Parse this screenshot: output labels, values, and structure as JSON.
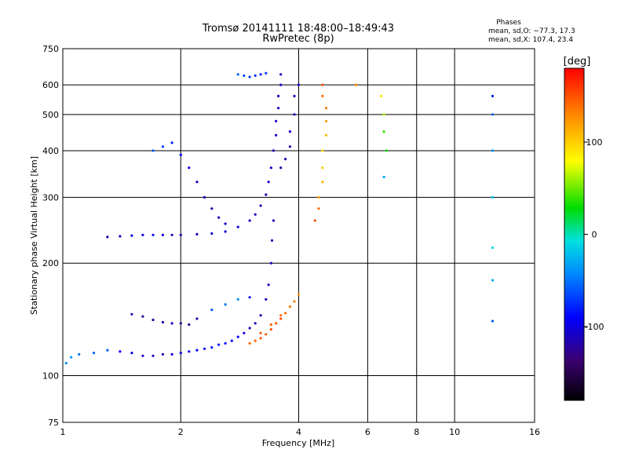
{
  "chart_data": {
    "type": "scatter",
    "title": "Tromsø 20141111 18:48:00–18:49:43",
    "subtitle": "RwPretec (8p)",
    "xlabel": "Frequency [MHz]",
    "ylabel": "Stationary phase Virtual Height [km]",
    "x_scale": "log",
    "y_scale": "log",
    "xlim": [
      1,
      16
    ],
    "ylim": [
      75,
      750
    ],
    "xticks": [
      1,
      2,
      4,
      6,
      8,
      10,
      16
    ],
    "yticks": [
      75,
      100,
      200,
      300,
      400,
      500,
      600,
      750
    ],
    "grid": true,
    "colorbar": {
      "label": "[deg]",
      "ticks": [
        100,
        0,
        -100
      ],
      "range": [
        -180,
        180
      ]
    },
    "stats": {
      "heading": "Phases",
      "line1": "mean, sd,O: −77.3, 17.3",
      "line2": "mean, sd,X: 107.4, 23.4"
    },
    "series": [
      {
        "points": [
          [
            1.02,
            108,
            -40
          ],
          [
            1.05,
            112,
            -35
          ],
          [
            1.1,
            114,
            -50
          ],
          [
            1.2,
            115,
            -55
          ],
          [
            1.3,
            117,
            -60
          ],
          [
            1.4,
            116,
            -90
          ],
          [
            1.5,
            115,
            -100
          ],
          [
            1.6,
            113,
            -105
          ],
          [
            1.7,
            113,
            -110
          ],
          [
            1.8,
            114,
            -115
          ],
          [
            1.9,
            114,
            -105
          ],
          [
            2.0,
            115,
            -100
          ],
          [
            2.1,
            116,
            -95
          ],
          [
            2.2,
            117,
            -90
          ],
          [
            2.3,
            118,
            -85
          ],
          [
            2.4,
            119,
            -80
          ],
          [
            2.5,
            121,
            -80
          ],
          [
            2.6,
            122,
            -85
          ],
          [
            2.7,
            124,
            -90
          ],
          [
            2.8,
            127,
            -100
          ],
          [
            2.9,
            130,
            -105
          ],
          [
            3.0,
            134,
            -110
          ],
          [
            3.1,
            138,
            -110
          ],
          [
            3.2,
            145,
            -115
          ],
          [
            3.3,
            160,
            -110
          ],
          [
            3.35,
            175,
            -105
          ],
          [
            3.4,
            200,
            -110
          ],
          [
            3.42,
            230,
            -115
          ],
          [
            3.45,
            260,
            -110
          ]
        ]
      },
      {
        "points": [
          [
            1.5,
            146,
            -120
          ],
          [
            1.6,
            144,
            -125
          ],
          [
            1.7,
            141,
            -120
          ],
          [
            1.8,
            139,
            -115
          ],
          [
            1.9,
            138,
            -110
          ],
          [
            2.0,
            138,
            -120
          ],
          [
            2.1,
            137,
            -125
          ],
          [
            2.2,
            142,
            -120
          ],
          [
            2.4,
            150,
            -60
          ],
          [
            2.6,
            155,
            -50
          ],
          [
            2.8,
            160,
            -40
          ],
          [
            3.0,
            162,
            -90
          ]
        ]
      },
      {
        "points": [
          [
            3.0,
            122,
            140
          ],
          [
            3.1,
            124,
            145
          ],
          [
            3.2,
            126,
            150
          ],
          [
            3.3,
            129,
            145
          ],
          [
            3.4,
            133,
            150
          ],
          [
            3.5,
            138,
            145
          ],
          [
            3.6,
            142,
            150
          ],
          [
            3.7,
            147,
            140
          ],
          [
            3.8,
            153,
            135
          ],
          [
            3.9,
            158,
            130
          ],
          [
            4.0,
            165,
            125
          ],
          [
            3.2,
            130,
            150
          ],
          [
            3.4,
            137,
            145
          ],
          [
            3.6,
            145,
            140
          ]
        ]
      },
      {
        "points": [
          [
            1.3,
            235,
            -120
          ],
          [
            1.4,
            236,
            -110
          ],
          [
            1.5,
            237,
            -100
          ],
          [
            1.6,
            238,
            -95
          ],
          [
            1.7,
            238,
            -90
          ],
          [
            1.8,
            238,
            -100
          ],
          [
            1.9,
            238,
            -110
          ],
          [
            2.0,
            238,
            -115
          ],
          [
            2.2,
            239,
            -110
          ],
          [
            2.4,
            240,
            -105
          ],
          [
            2.6,
            243,
            -100
          ],
          [
            2.8,
            250,
            -100
          ],
          [
            3.0,
            260,
            -105
          ],
          [
            3.1,
            270,
            -110
          ],
          [
            3.2,
            285,
            -115
          ],
          [
            3.3,
            305,
            -110
          ],
          [
            3.35,
            330,
            -105
          ],
          [
            3.4,
            360,
            -110
          ],
          [
            3.45,
            400,
            -115
          ],
          [
            3.5,
            440,
            -110
          ],
          [
            3.5,
            480,
            -105
          ],
          [
            3.55,
            520,
            -110
          ],
          [
            3.55,
            560,
            -115
          ],
          [
            3.6,
            600,
            -110
          ],
          [
            3.6,
            640,
            -110
          ]
        ]
      },
      {
        "points": [
          [
            1.7,
            400,
            -60
          ],
          [
            1.8,
            410,
            -70
          ],
          [
            1.9,
            420,
            -80
          ],
          [
            2.0,
            390,
            -90
          ],
          [
            2.1,
            360,
            -100
          ],
          [
            2.2,
            330,
            -110
          ],
          [
            2.3,
            300,
            -115
          ],
          [
            2.4,
            280,
            -120
          ],
          [
            2.5,
            265,
            -110
          ],
          [
            2.6,
            255,
            -105
          ]
        ]
      },
      {
        "points": [
          [
            3.6,
            360,
            -120
          ],
          [
            3.7,
            380,
            -115
          ],
          [
            3.8,
            410,
            -110
          ],
          [
            3.8,
            450,
            -105
          ],
          [
            3.9,
            500,
            -110
          ],
          [
            3.9,
            560,
            -115
          ],
          [
            4.0,
            600,
            -110
          ]
        ]
      },
      {
        "points": [
          [
            2.8,
            640,
            -60
          ],
          [
            2.9,
            635,
            -65
          ],
          [
            3.0,
            630,
            -70
          ],
          [
            3.1,
            635,
            -75
          ],
          [
            3.2,
            640,
            -80
          ],
          [
            3.3,
            645,
            -70
          ]
        ]
      },
      {
        "points": [
          [
            4.4,
            260,
            150
          ],
          [
            4.5,
            280,
            140
          ],
          [
            4.5,
            300,
            120
          ],
          [
            4.6,
            330,
            110
          ],
          [
            4.6,
            360,
            100
          ],
          [
            4.6,
            400,
            95
          ],
          [
            4.7,
            440,
            110
          ],
          [
            4.7,
            480,
            120
          ],
          [
            4.7,
            520,
            135
          ],
          [
            4.6,
            560,
            140
          ],
          [
            4.6,
            600,
            150
          ]
        ]
      },
      {
        "points": [
          [
            5.6,
            600,
            130
          ],
          [
            6.5,
            560,
            90
          ],
          [
            6.6,
            500,
            60
          ],
          [
            6.6,
            450,
            40
          ],
          [
            6.7,
            400,
            30
          ],
          [
            6.6,
            340,
            -30
          ]
        ]
      },
      {
        "points": [
          [
            12.5,
            560,
            -80
          ],
          [
            12.5,
            500,
            -60
          ],
          [
            12.5,
            400,
            -40
          ],
          [
            12.5,
            300,
            -20
          ],
          [
            12.5,
            220,
            -10
          ],
          [
            12.5,
            180,
            -30
          ],
          [
            12.5,
            140,
            -60
          ]
        ]
      }
    ]
  }
}
